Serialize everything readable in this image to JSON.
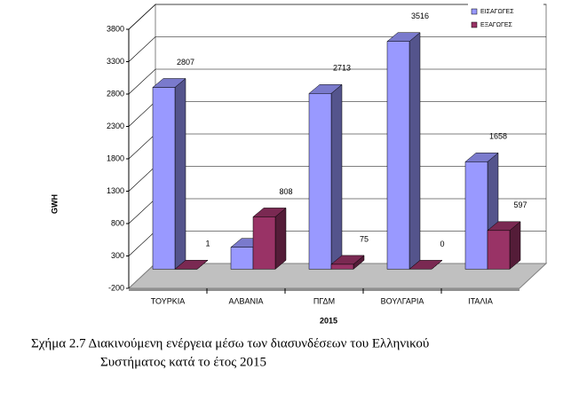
{
  "chart_data": {
    "type": "bar3d",
    "categories": [
      "ΤΟΥΡΚΙΑ",
      "ΑΛΒΑΝΙΑ",
      "ΠΓΔΜ",
      "ΒΟΥΛΓΑΡΙΑ",
      "ΙΤΑΛΙΑ"
    ],
    "series": [
      {
        "name": "ΕΙΣΑΓΩΓΕΣ",
        "color": "#9999ff",
        "values": [
          2807,
          338,
          2713,
          3516,
          1658
        ]
      },
      {
        "name": "ΕΞΑΓΩΓΕΣ",
        "color": "#993366",
        "values": [
          1,
          808,
          75,
          0,
          597
        ]
      }
    ],
    "xlabel": "2015",
    "ylabel": "GWH",
    "ylim": [
      -200,
      3800
    ],
    "yticks": [
      -200,
      300,
      800,
      1300,
      1800,
      2300,
      2800,
      3300,
      3800
    ],
    "grid": true,
    "legend": "top-right"
  },
  "caption": [
    "Σχήμα 2.7  Διακινούμενη ενέργεια μέσω των διασυνδέσεων του Ελληνικού",
    "Συστήματος κατά το έτος 2015"
  ]
}
